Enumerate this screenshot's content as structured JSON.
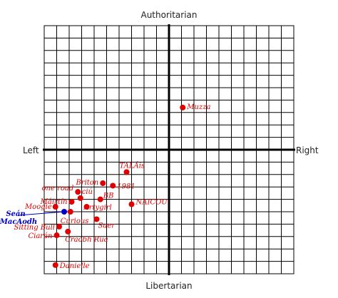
{
  "chart_data": {
    "type": "scatter",
    "title": "",
    "axis_labels": {
      "top": "Authoritarian",
      "bottom": "Libertarian",
      "left": "Left",
      "right": "Right"
    },
    "xlim": [
      -10,
      10
    ],
    "ylim": [
      -10,
      10
    ],
    "grid": true,
    "colors": {
      "point": "#e00000",
      "highlight": "#0000cc",
      "grid": "#000000"
    },
    "points": [
      {
        "label": "Muzza",
        "x": 1.1,
        "y": 3.4,
        "color": "#e00000"
      },
      {
        "label": "TALÁis",
        "x": -3.4,
        "y": -1.8,
        "color": "#e00000"
      },
      {
        "label": "Briton",
        "x": -5.3,
        "y": -2.7,
        "color": "#e00000"
      },
      {
        "label": "1981",
        "x": -4.5,
        "y": -2.9,
        "color": "#e00000"
      },
      {
        "label": "one road",
        "x": -7.3,
        "y": -3.4,
        "color": "#e00000"
      },
      {
        "label": "ciú",
        "x": -7.1,
        "y": -3.9,
        "color": "#e00000"
      },
      {
        "label": "BB",
        "x": -5.5,
        "y": -4.0,
        "color": "#e00000"
      },
      {
        "label": "Máirtín",
        "x": -7.8,
        "y": -4.2,
        "color": "#e00000"
      },
      {
        "label": "NAICOU",
        "x": -3.0,
        "y": -4.4,
        "color": "#e00000"
      },
      {
        "label": "Moogie",
        "x": -9.1,
        "y": -4.6,
        "color": "#e00000"
      },
      {
        "label": "Artygirl",
        "x": -6.6,
        "y": -4.6,
        "color": "#e00000"
      },
      {
        "label": "Seán MacAodh",
        "x": -8.4,
        "y": -5.0,
        "color": "#0000cc"
      },
      {
        "label": "Curious",
        "x": -7.9,
        "y": -5.0,
        "color": "#e00000"
      },
      {
        "label": "Saer",
        "x": -5.8,
        "y": -5.6,
        "color": "#e00000"
      },
      {
        "label": "Sitting Bull",
        "x": -8.8,
        "y": -6.2,
        "color": "#e00000"
      },
      {
        "label": "Craobh Rua",
        "x": -8.1,
        "y": -6.6,
        "color": "#e00000"
      },
      {
        "label": "Ciarán",
        "x": -9.0,
        "y": -6.9,
        "color": "#e00000"
      },
      {
        "label": "Danielle",
        "x": -9.1,
        "y": -9.3,
        "color": "#e00000"
      }
    ]
  }
}
